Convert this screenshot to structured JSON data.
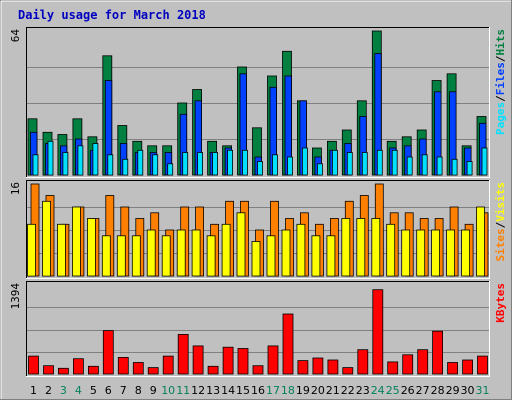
{
  "colors": {
    "background": "#c0c0c0",
    "panel": "#c0c0c0",
    "grid": "#808080",
    "hits": "#008040",
    "files": "#0040ff",
    "pages": "#00e0ff",
    "visits": "#ffff00",
    "sites": "#ff8000",
    "kbytes": "#ff0000",
    "weekday": "#000000",
    "weekend": "#00805c"
  },
  "chart_data": {
    "type": "bar",
    "title": "Daily usage for March 2018",
    "categories": [
      "1",
      "2",
      "3",
      "4",
      "5",
      "6",
      "7",
      "8",
      "9",
      "10",
      "11",
      "12",
      "13",
      "14",
      "15",
      "16",
      "17",
      "18",
      "19",
      "20",
      "21",
      "22",
      "23",
      "24",
      "25",
      "26",
      "27",
      "28",
      "29",
      "30",
      "31"
    ],
    "weekend_days": [
      "3",
      "4",
      "10",
      "11",
      "17",
      "18",
      "24",
      "25",
      "31"
    ],
    "panels": [
      {
        "id": "hits",
        "ylim": [
          0,
          64
        ],
        "ytick": "64",
        "legend": [
          {
            "text": "Pages",
            "color": "#00e0ff"
          },
          {
            "text": "/",
            "color": "#000000"
          },
          {
            "text": "Files",
            "color": "#0040ff"
          },
          {
            "text": "/",
            "color": "#000000"
          },
          {
            "text": "Hits",
            "color": "#008040"
          }
        ],
        "series": [
          {
            "name": "Hits",
            "values": [
              25,
              19,
              18,
              25,
              17,
              53,
              22,
              15,
              13,
              13,
              32,
              38,
              15,
              13,
              48,
              21,
              44,
              55,
              33,
              12,
              15,
              20,
              33,
              64,
              15,
              17,
              20,
              42,
              45,
              13,
              26
            ]
          },
          {
            "name": "Files",
            "values": [
              19,
              14,
              13,
              16,
              11,
              42,
              14,
              10,
              10,
              10,
              27,
              33,
              10,
              12,
              45,
              8,
              39,
              44,
              33,
              8,
              11,
              14,
              26,
              54,
              12,
              13,
              16,
              37,
              37,
              12,
              23
            ]
          },
          {
            "name": "Pages",
            "values": [
              9,
              15,
              10,
              13,
              14,
              9,
              7,
              11,
              9,
              5,
              10,
              10,
              10,
              11,
              11,
              6,
              9,
              8,
              12,
              5,
              11,
              10,
              10,
              11,
              11,
              8,
              9,
              8,
              7,
              6,
              12
            ]
          }
        ]
      },
      {
        "id": "visits",
        "ylim": [
          0,
          16
        ],
        "ytick": "16",
        "legend": [
          {
            "text": "Sites",
            "color": "#ff8000"
          },
          {
            "text": "/",
            "color": "#000000"
          },
          {
            "text": "Visits",
            "color": "#ffff00"
          }
        ],
        "series": [
          {
            "name": "Sites",
            "values": [
              16,
              14,
              9,
              12,
              10,
              14,
              12,
              10,
              11,
              8,
              12,
              12,
              9,
              13,
              13,
              8,
              13,
              10,
              11,
              9,
              10,
              13,
              14,
              16,
              11,
              11,
              10,
              10,
              12,
              9,
              11
            ]
          },
          {
            "name": "Visits",
            "values": [
              9,
              13,
              9,
              12,
              10,
              7,
              7,
              7,
              8,
              7,
              8,
              8,
              7,
              9,
              11,
              6,
              7,
              8,
              9,
              7,
              7,
              10,
              10,
              10,
              9,
              8,
              8,
              8,
              8,
              8,
              12
            ]
          }
        ]
      },
      {
        "id": "kbytes",
        "ylim": [
          0,
          1394
        ],
        "ytick": "1394",
        "legend": [
          {
            "text": "KBytes",
            "color": "#ff0000"
          }
        ],
        "series": [
          {
            "name": "KBytes",
            "values": [
              280,
              130,
              90,
              240,
              120,
              680,
              260,
              180,
              100,
              280,
              620,
              440,
              120,
              420,
              400,
              130,
              440,
              940,
              210,
              250,
              220,
              100,
              380,
              1320,
              190,
              300,
              380,
              670,
              180,
              220,
              280
            ]
          }
        ]
      }
    ]
  }
}
